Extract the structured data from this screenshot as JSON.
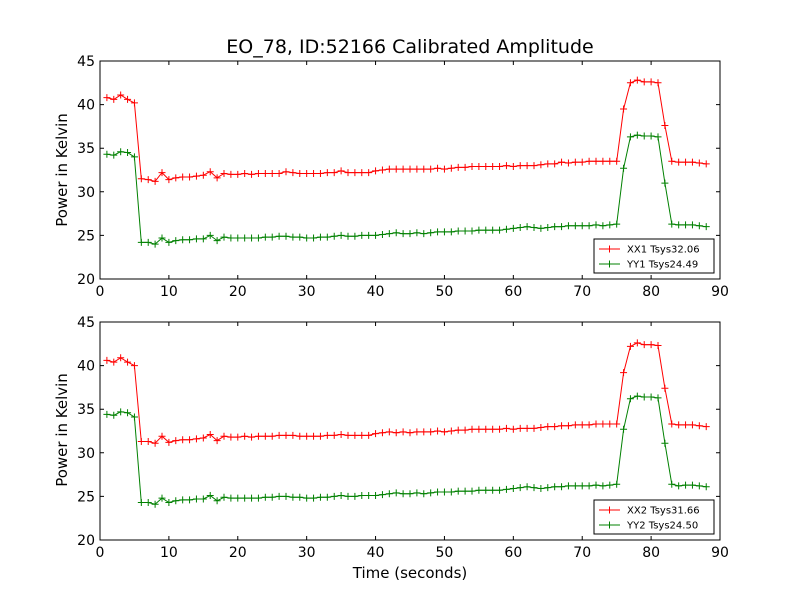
{
  "title": "EO_78, ID:52166 Calibrated Amplitude",
  "colors": {
    "xx": "#ff0000",
    "yy": "#008000",
    "axes": "#000000",
    "background": "#ffffff"
  },
  "chart_data": [
    {
      "type": "line",
      "ylabel": "Power in Kelvin",
      "xlabel": "",
      "xlim": [
        0,
        90
      ],
      "ylim": [
        20,
        45
      ],
      "xticks": [
        0,
        10,
        20,
        30,
        40,
        50,
        60,
        70,
        80,
        90
      ],
      "yticks": [
        20,
        25,
        30,
        35,
        40,
        45
      ],
      "grid": false,
      "legend_position": "lower-right",
      "x": [
        1,
        2,
        3,
        4,
        5,
        6,
        7,
        8,
        9,
        10,
        11,
        12,
        13,
        14,
        15,
        16,
        17,
        18,
        19,
        20,
        21,
        22,
        23,
        24,
        25,
        26,
        27,
        28,
        29,
        30,
        31,
        32,
        33,
        34,
        35,
        36,
        37,
        38,
        39,
        40,
        41,
        42,
        43,
        44,
        45,
        46,
        47,
        48,
        49,
        50,
        51,
        52,
        53,
        54,
        55,
        56,
        57,
        58,
        59,
        60,
        61,
        62,
        63,
        64,
        65,
        66,
        67,
        68,
        69,
        70,
        71,
        72,
        73,
        74,
        75,
        76,
        77,
        78,
        79,
        80,
        81,
        82,
        83,
        84,
        85,
        86,
        87,
        88
      ],
      "series": [
        {
          "name": "XX1 Tsys32.06",
          "color": "#ff0000",
          "values": [
            40.8,
            40.6,
            41.1,
            40.6,
            40.2,
            31.5,
            31.4,
            31.2,
            32.2,
            31.4,
            31.6,
            31.7,
            31.7,
            31.8,
            31.9,
            32.3,
            31.6,
            32.1,
            32.0,
            32.0,
            32.1,
            32.0,
            32.1,
            32.1,
            32.1,
            32.1,
            32.3,
            32.2,
            32.1,
            32.1,
            32.1,
            32.1,
            32.2,
            32.2,
            32.4,
            32.2,
            32.2,
            32.2,
            32.2,
            32.4,
            32.5,
            32.6,
            32.6,
            32.6,
            32.6,
            32.6,
            32.6,
            32.6,
            32.7,
            32.6,
            32.7,
            32.8,
            32.8,
            32.9,
            32.9,
            32.9,
            32.9,
            32.9,
            33.0,
            32.9,
            33.0,
            33.0,
            33.0,
            33.1,
            33.2,
            33.2,
            33.4,
            33.3,
            33.4,
            33.4,
            33.5,
            33.5,
            33.5,
            33.5,
            33.5,
            39.5,
            42.5,
            42.8,
            42.6,
            42.6,
            42.5,
            37.6,
            33.5,
            33.4,
            33.4,
            33.4,
            33.3,
            33.2
          ]
        },
        {
          "name": "YY1 Tsys24.49",
          "color": "#008000",
          "values": [
            34.3,
            34.2,
            34.6,
            34.5,
            34.0,
            24.2,
            24.2,
            24.0,
            24.7,
            24.2,
            24.4,
            24.5,
            24.5,
            24.6,
            24.6,
            25.0,
            24.4,
            24.8,
            24.7,
            24.7,
            24.7,
            24.7,
            24.7,
            24.8,
            24.8,
            24.9,
            24.9,
            24.8,
            24.8,
            24.7,
            24.7,
            24.8,
            24.8,
            24.9,
            25.0,
            24.9,
            24.9,
            25.0,
            25.0,
            25.0,
            25.1,
            25.2,
            25.3,
            25.2,
            25.2,
            25.3,
            25.2,
            25.3,
            25.4,
            25.4,
            25.4,
            25.5,
            25.5,
            25.5,
            25.6,
            25.6,
            25.6,
            25.6,
            25.7,
            25.8,
            25.9,
            26.0,
            25.9,
            25.8,
            25.9,
            26.0,
            26.0,
            26.1,
            26.1,
            26.1,
            26.1,
            26.2,
            26.1,
            26.2,
            26.3,
            32.7,
            36.3,
            36.5,
            36.4,
            36.4,
            36.3,
            31.0,
            26.3,
            26.2,
            26.2,
            26.2,
            26.1,
            26.0
          ]
        }
      ]
    },
    {
      "type": "line",
      "ylabel": "Power in Kelvin",
      "xlabel": "Time (seconds)",
      "xlim": [
        0,
        90
      ],
      "ylim": [
        20,
        45
      ],
      "xticks": [
        0,
        10,
        20,
        30,
        40,
        50,
        60,
        70,
        80,
        90
      ],
      "yticks": [
        20,
        25,
        30,
        35,
        40,
        45
      ],
      "grid": false,
      "legend_position": "lower-right",
      "x": [
        1,
        2,
        3,
        4,
        5,
        6,
        7,
        8,
        9,
        10,
        11,
        12,
        13,
        14,
        15,
        16,
        17,
        18,
        19,
        20,
        21,
        22,
        23,
        24,
        25,
        26,
        27,
        28,
        29,
        30,
        31,
        32,
        33,
        34,
        35,
        36,
        37,
        38,
        39,
        40,
        41,
        42,
        43,
        44,
        45,
        46,
        47,
        48,
        49,
        50,
        51,
        52,
        53,
        54,
        55,
        56,
        57,
        58,
        59,
        60,
        61,
        62,
        63,
        64,
        65,
        66,
        67,
        68,
        69,
        70,
        71,
        72,
        73,
        74,
        75,
        76,
        77,
        78,
        79,
        80,
        81,
        82,
        83,
        84,
        85,
        86,
        87,
        88
      ],
      "series": [
        {
          "name": "XX2 Tsys31.66",
          "color": "#ff0000",
          "values": [
            40.6,
            40.4,
            40.9,
            40.4,
            40.0,
            31.3,
            31.3,
            31.1,
            31.9,
            31.2,
            31.4,
            31.5,
            31.5,
            31.6,
            31.7,
            32.1,
            31.4,
            31.9,
            31.8,
            31.8,
            31.9,
            31.8,
            31.9,
            31.9,
            31.9,
            32.0,
            32.0,
            32.0,
            31.9,
            31.9,
            31.9,
            31.9,
            32.0,
            32.0,
            32.1,
            32.0,
            32.0,
            32.0,
            32.0,
            32.2,
            32.3,
            32.4,
            32.3,
            32.4,
            32.3,
            32.4,
            32.4,
            32.4,
            32.5,
            32.4,
            32.5,
            32.6,
            32.6,
            32.7,
            32.7,
            32.7,
            32.7,
            32.7,
            32.8,
            32.7,
            32.8,
            32.8,
            32.8,
            32.9,
            33.0,
            33.0,
            33.1,
            33.1,
            33.2,
            33.2,
            33.2,
            33.3,
            33.3,
            33.3,
            33.3,
            39.2,
            42.2,
            42.6,
            42.4,
            42.4,
            42.3,
            37.4,
            33.3,
            33.2,
            33.2,
            33.2,
            33.1,
            33.0
          ]
        },
        {
          "name": "YY2 Tsys24.50",
          "color": "#008000",
          "values": [
            34.4,
            34.3,
            34.7,
            34.6,
            34.1,
            24.3,
            24.3,
            24.1,
            24.8,
            24.3,
            24.5,
            24.6,
            24.6,
            24.7,
            24.7,
            25.1,
            24.5,
            24.9,
            24.8,
            24.8,
            24.8,
            24.8,
            24.8,
            24.9,
            24.9,
            25.0,
            25.0,
            24.9,
            24.9,
            24.8,
            24.8,
            24.9,
            24.9,
            25.0,
            25.1,
            25.0,
            25.0,
            25.1,
            25.1,
            25.1,
            25.2,
            25.3,
            25.4,
            25.3,
            25.3,
            25.4,
            25.3,
            25.4,
            25.5,
            25.5,
            25.5,
            25.6,
            25.6,
            25.6,
            25.7,
            25.7,
            25.7,
            25.7,
            25.8,
            25.9,
            26.0,
            26.1,
            26.0,
            25.9,
            26.0,
            26.1,
            26.1,
            26.2,
            26.2,
            26.2,
            26.2,
            26.3,
            26.2,
            26.3,
            26.4,
            32.7,
            36.2,
            36.5,
            36.4,
            36.4,
            36.3,
            31.1,
            26.4,
            26.2,
            26.3,
            26.3,
            26.2,
            26.1
          ]
        }
      ]
    }
  ]
}
